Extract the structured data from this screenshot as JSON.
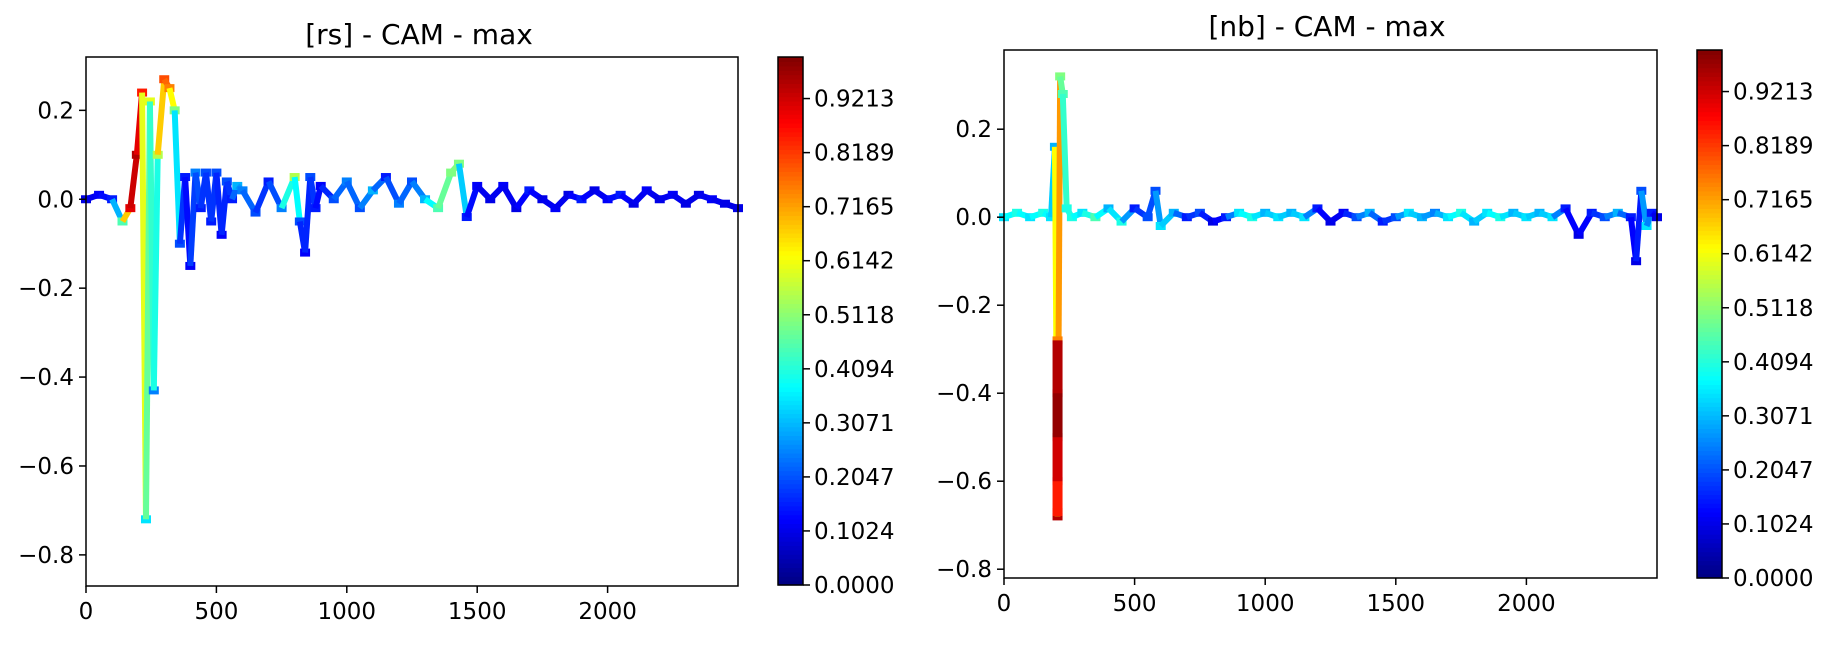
{
  "chart_data": [
    {
      "type": "scatter",
      "title": "[rs] - CAM - max",
      "xlabel": "",
      "ylabel": "",
      "xlim": [
        0,
        2500
      ],
      "ylim": [
        -0.87,
        0.32
      ],
      "xticks": [
        0,
        500,
        1000,
        1500,
        2000
      ],
      "yticks": [
        0.2,
        0.0,
        -0.2,
        -0.4,
        -0.6,
        -0.8
      ],
      "ytick_labels": [
        "0.2",
        "0.0",
        "−0.2",
        "−0.4",
        "−0.6",
        "−0.8"
      ],
      "colormap": "jet",
      "colorbar": {
        "min": 0,
        "max": 1,
        "ticks": [
          0.0,
          0.1024,
          0.2047,
          0.3071,
          0.4094,
          0.5118,
          0.6142,
          0.7165,
          0.8189,
          0.9213
        ],
        "tick_labels": [
          "0.0000",
          "0.1024",
          "0.2047",
          "0.3071",
          "0.4094",
          "0.5118",
          "0.6142",
          "0.7165",
          "0.8189",
          "0.9213"
        ]
      },
      "series": [
        {
          "x": [
            0,
            50,
            100,
            140,
            170,
            195,
            215,
            230,
            245,
            260,
            275,
            300,
            320,
            340,
            360,
            380,
            400,
            420,
            440,
            460,
            480,
            500,
            520,
            540,
            560,
            580,
            600,
            650,
            700,
            750,
            800,
            820,
            840,
            860,
            880,
            900,
            950,
            1000,
            1050,
            1100,
            1150,
            1200,
            1250,
            1300,
            1350,
            1400,
            1430,
            1460,
            1500,
            1550,
            1600,
            1650,
            1700,
            1750,
            1800,
            1850,
            1900,
            1950,
            2000,
            2050,
            2100,
            2150,
            2200,
            2250,
            2300,
            2350,
            2400,
            2450,
            2500
          ],
          "y": [
            0.0,
            0.01,
            0.0,
            -0.05,
            -0.02,
            0.1,
            0.24,
            -0.72,
            0.22,
            -0.43,
            0.1,
            0.27,
            0.25,
            0.2,
            -0.1,
            0.05,
            -0.15,
            0.06,
            -0.02,
            0.06,
            -0.05,
            0.06,
            -0.08,
            0.04,
            0.0,
            0.03,
            0.02,
            -0.03,
            0.04,
            -0.02,
            0.05,
            -0.05,
            -0.12,
            0.05,
            -0.02,
            0.03,
            0.0,
            0.04,
            -0.02,
            0.02,
            0.05,
            -0.01,
            0.04,
            0.0,
            -0.02,
            0.06,
            0.08,
            -0.04,
            0.03,
            0.0,
            0.03,
            -0.02,
            0.02,
            0.0,
            -0.02,
            0.01,
            0.0,
            0.02,
            0.0,
            0.01,
            -0.01,
            0.02,
            0.0,
            0.01,
            -0.01,
            0.01,
            0.0,
            -0.01,
            -0.02
          ],
          "c": [
            0.1,
            0.12,
            0.15,
            0.45,
            0.9,
            0.95,
            0.85,
            0.35,
            0.6,
            0.25,
            0.55,
            0.8,
            0.75,
            0.5,
            0.2,
            0.15,
            0.12,
            0.25,
            0.15,
            0.2,
            0.15,
            0.2,
            0.12,
            0.2,
            0.15,
            0.3,
            0.25,
            0.2,
            0.15,
            0.25,
            0.55,
            0.2,
            0.12,
            0.2,
            0.15,
            0.12,
            0.2,
            0.25,
            0.2,
            0.3,
            0.15,
            0.25,
            0.2,
            0.3,
            0.45,
            0.5,
            0.5,
            0.15,
            0.12,
            0.1,
            0.12,
            0.1,
            0.15,
            0.1,
            0.12,
            0.1,
            0.15,
            0.1,
            0.12,
            0.15,
            0.1,
            0.12,
            0.1,
            0.12,
            0.1,
            0.1,
            0.12,
            0.1,
            0.1
          ]
        }
      ]
    },
    {
      "type": "scatter",
      "title": "[nb] - CAM - max",
      "xlabel": "",
      "ylabel": "",
      "xlim": [
        0,
        2500
      ],
      "ylim": [
        -0.82,
        0.38
      ],
      "xticks": [
        0,
        500,
        1000,
        1500,
        2000
      ],
      "yticks": [
        0.2,
        0.0,
        -0.2,
        -0.4,
        -0.6,
        -0.8
      ],
      "ytick_labels": [
        "0.2",
        "0.0",
        "−0.2",
        "−0.4",
        "−0.6",
        "−0.8"
      ],
      "colormap": "jet",
      "colorbar": {
        "min": 0,
        "max": 1,
        "ticks": [
          0.0,
          0.1024,
          0.2047,
          0.3071,
          0.4094,
          0.5118,
          0.6142,
          0.7165,
          0.8189,
          0.9213
        ],
        "tick_labels": [
          "0.0000",
          "0.1024",
          "0.2047",
          "0.3071",
          "0.4094",
          "0.5118",
          "0.6142",
          "0.7165",
          "0.8189",
          "0.9213"
        ]
      },
      "series": [
        {
          "x": [
            0,
            50,
            100,
            150,
            180,
            195,
            205,
            215,
            225,
            240,
            260,
            300,
            350,
            400,
            450,
            500,
            550,
            580,
            600,
            650,
            700,
            750,
            800,
            850,
            900,
            950,
            1000,
            1050,
            1100,
            1150,
            1200,
            1250,
            1300,
            1350,
            1400,
            1450,
            1500,
            1550,
            1600,
            1650,
            1700,
            1750,
            1800,
            1850,
            1900,
            1950,
            2000,
            2050,
            2100,
            2150,
            2200,
            2250,
            2300,
            2350,
            2400,
            2420,
            2440,
            2460,
            2480,
            2500
          ],
          "y": [
            0.0,
            0.01,
            0.0,
            0.01,
            0.0,
            0.16,
            -0.68,
            0.32,
            0.28,
            0.02,
            0.0,
            0.01,
            0.0,
            0.02,
            -0.01,
            0.02,
            0.0,
            0.06,
            -0.02,
            0.01,
            0.0,
            0.01,
            -0.01,
            0.0,
            0.01,
            0.0,
            0.01,
            0.0,
            0.01,
            0.0,
            0.02,
            -0.01,
            0.01,
            0.0,
            0.01,
            -0.01,
            0.0,
            0.01,
            0.0,
            0.01,
            0.0,
            0.01,
            -0.01,
            0.01,
            0.0,
            0.01,
            0.0,
            0.01,
            0.0,
            0.02,
            -0.04,
            0.01,
            0.0,
            0.01,
            0.0,
            -0.1,
            0.06,
            -0.02,
            0.01,
            0.0
          ],
          "c": [
            0.35,
            0.4,
            0.35,
            0.4,
            0.35,
            0.3,
            0.95,
            0.5,
            0.45,
            0.4,
            0.4,
            0.35,
            0.45,
            0.3,
            0.4,
            0.15,
            0.2,
            0.2,
            0.35,
            0.3,
            0.15,
            0.2,
            0.1,
            0.15,
            0.35,
            0.4,
            0.3,
            0.35,
            0.3,
            0.35,
            0.15,
            0.1,
            0.12,
            0.2,
            0.3,
            0.15,
            0.2,
            0.35,
            0.3,
            0.25,
            0.35,
            0.4,
            0.3,
            0.35,
            0.4,
            0.3,
            0.35,
            0.3,
            0.35,
            0.15,
            0.1,
            0.15,
            0.2,
            0.3,
            0.15,
            0.1,
            0.2,
            0.35,
            0.15,
            0.1
          ]
        },
        {
          "name_hidden": "",
          "x": [
            205,
            205,
            205,
            205,
            205
          ],
          "y": [
            -0.28,
            -0.4,
            -0.5,
            -0.6,
            -0.67
          ],
          "c": [
            0.75,
            0.95,
            0.98,
            0.92,
            0.85
          ]
        }
      ]
    }
  ]
}
